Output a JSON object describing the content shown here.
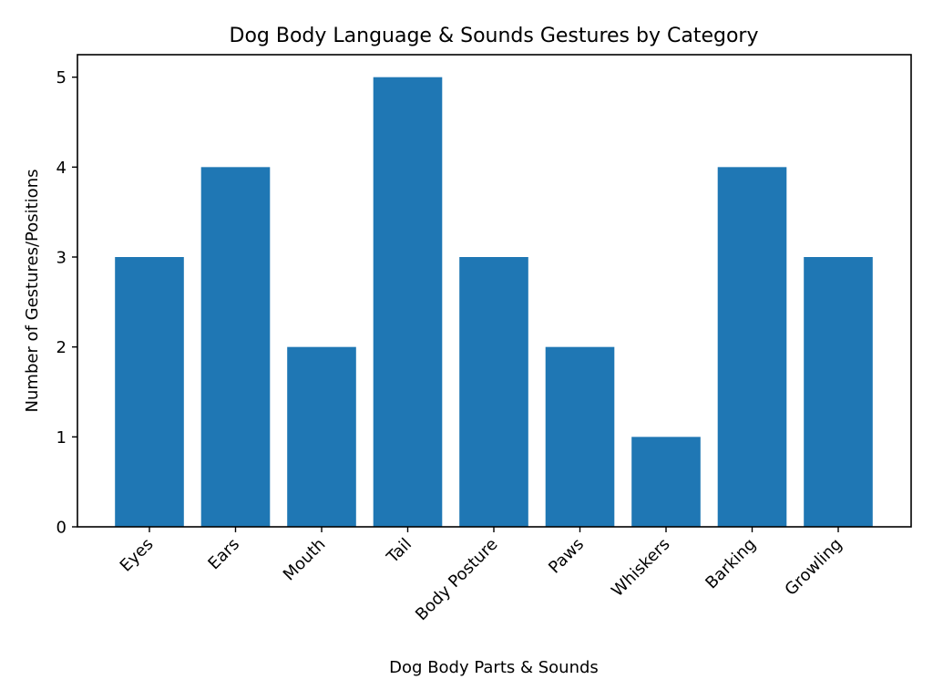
{
  "chart_data": {
    "type": "bar",
    "title": "Dog Body Language & Sounds Gestures by Category",
    "xlabel": "Dog Body Parts & Sounds",
    "ylabel": "Number of Gestures/Positions",
    "categories": [
      "Eyes",
      "Ears",
      "Mouth",
      "Tail",
      "Body Posture",
      "Paws",
      "Whiskers",
      "Barking",
      "Growling"
    ],
    "values": [
      3,
      4,
      2,
      5,
      3,
      2,
      1,
      4,
      3
    ],
    "ylim": [
      0,
      5.25
    ],
    "yticks": [
      0,
      1,
      2,
      3,
      4,
      5
    ],
    "grid": false,
    "legend": null,
    "bar_color": "#1f77b4",
    "xtick_rotation": -45
  }
}
